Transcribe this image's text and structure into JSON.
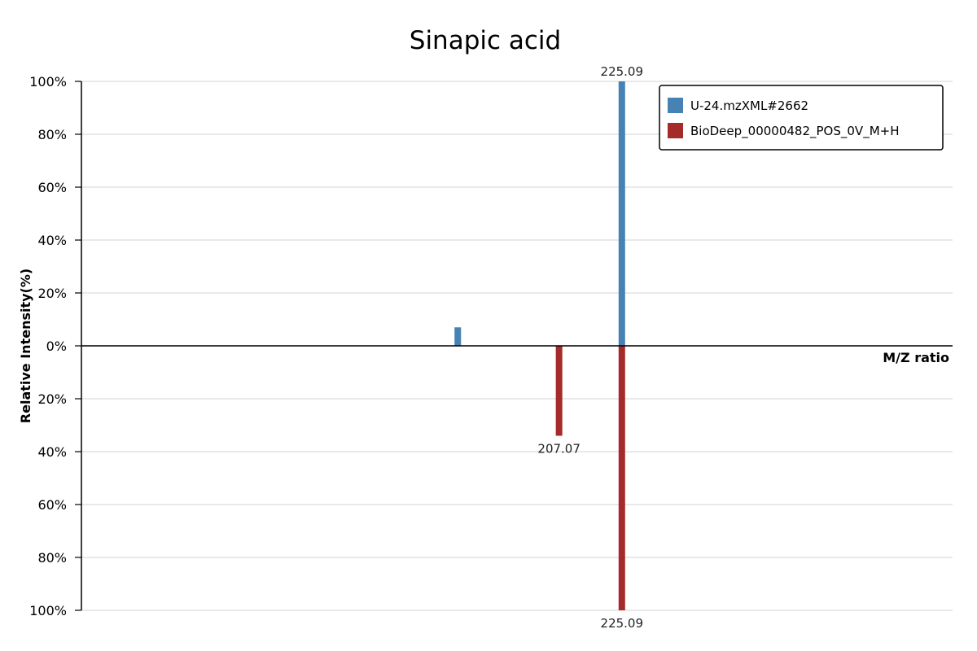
{
  "chart_data": {
    "type": "bar",
    "title": "Sinapic acid",
    "xlabel": "M/Z ratio",
    "ylabel": "Relative Intensity(%)",
    "ylim": [
      -100,
      100
    ],
    "y_ticks": [
      "100%",
      "80%",
      "60%",
      "40%",
      "20%",
      "0%",
      "20%",
      "40%",
      "60%",
      "80%",
      "100%"
    ],
    "grid": true,
    "legend_position": "top-right",
    "series": [
      {
        "name": "U-24.mzXML#2662",
        "color": "#4682B4",
        "direction": "up",
        "peaks": [
          {
            "mz": 178.0,
            "intensity": 7,
            "label": ""
          },
          {
            "mz": 225.09,
            "intensity": 100,
            "label": "225.09"
          }
        ]
      },
      {
        "name": "BioDeep_00000482_POS_0V_M+H",
        "color": "#A52A2A",
        "direction": "down",
        "peaks": [
          {
            "mz": 207.07,
            "intensity": 34,
            "label": "207.07"
          },
          {
            "mz": 225.09,
            "intensity": 100,
            "label": "225.09"
          }
        ]
      }
    ]
  }
}
